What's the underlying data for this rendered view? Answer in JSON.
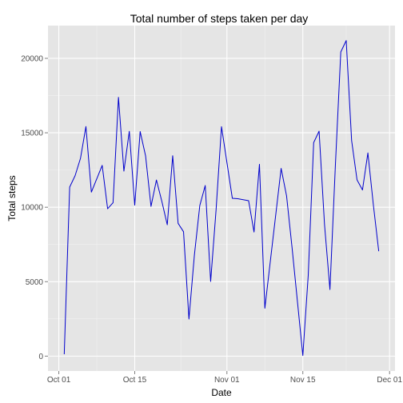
{
  "chart_data": {
    "type": "line",
    "title": "Total number of steps taken per day",
    "xlabel": "Date",
    "ylabel": "Total steps",
    "xlim": [
      "2012-09-29",
      "2012-12-02"
    ],
    "ylim": [
      -1000,
      22200
    ],
    "x_ticks": [
      {
        "date": "2012-10-01",
        "label": "Oct 01"
      },
      {
        "date": "2012-10-15",
        "label": "Oct 15"
      },
      {
        "date": "2012-11-01",
        "label": "Nov 01"
      },
      {
        "date": "2012-11-15",
        "label": "Nov 15"
      },
      {
        "date": "2012-12-01",
        "label": "Dec 01"
      }
    ],
    "y_ticks": [
      {
        "value": 0,
        "label": "0"
      },
      {
        "value": 5000,
        "label": "5000"
      },
      {
        "value": 10000,
        "label": "10000"
      },
      {
        "value": 15000,
        "label": "15000"
      },
      {
        "value": 20000,
        "label": "20000"
      }
    ],
    "grid": true,
    "line_color": "#0000CC",
    "panel_background": "#E5E5E5",
    "series": [
      {
        "x": [
          "2012-10-02",
          "2012-10-03",
          "2012-10-04",
          "2012-10-05",
          "2012-10-06",
          "2012-10-07",
          "2012-10-09",
          "2012-10-10",
          "2012-10-11",
          "2012-10-12",
          "2012-10-13",
          "2012-10-14",
          "2012-10-15",
          "2012-10-16",
          "2012-10-17",
          "2012-10-18",
          "2012-10-19",
          "2012-10-20",
          "2012-10-21",
          "2012-10-22",
          "2012-10-23",
          "2012-10-24",
          "2012-10-25",
          "2012-10-26",
          "2012-10-27",
          "2012-10-28",
          "2012-10-29",
          "2012-10-30",
          "2012-10-31",
          "2012-11-02",
          "2012-11-03",
          "2012-11-05",
          "2012-11-06",
          "2012-11-07",
          "2012-11-08",
          "2012-11-11",
          "2012-11-12",
          "2012-11-13",
          "2012-11-15",
          "2012-11-16",
          "2012-11-17",
          "2012-11-18",
          "2012-11-19",
          "2012-11-20",
          "2012-11-21",
          "2012-11-22",
          "2012-11-23",
          "2012-11-24",
          "2012-11-25",
          "2012-11-26",
          "2012-11-27",
          "2012-11-28",
          "2012-11-29"
        ],
        "values": [
          126,
          11352,
          12116,
          13294,
          15420,
          11015,
          12811,
          9900,
          10304,
          17382,
          12426,
          15098,
          10139,
          15084,
          13452,
          10056,
          11829,
          10395,
          8821,
          13460,
          8918,
          8355,
          2492,
          6778,
          10119,
          11458,
          5018,
          9819,
          15414,
          10600,
          10571,
          10439,
          8334,
          12883,
          3219,
          12608,
          10765,
          7336,
          41,
          5441,
          14339,
          15110,
          8841,
          4472,
          12787,
          20427,
          21194,
          14478,
          11834,
          11162,
          13646,
          10183,
          7047
        ]
      }
    ]
  }
}
